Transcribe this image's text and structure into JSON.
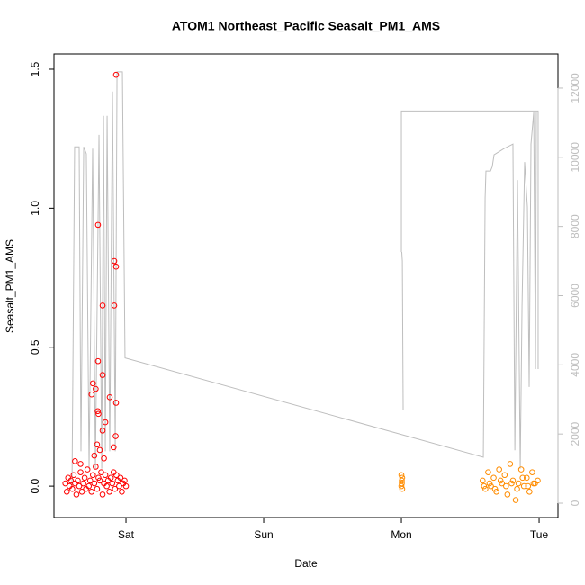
{
  "chart_data": {
    "type": "scatter",
    "title": "ATOM1 Northeast_Pacific Seasalt_PM1_AMS",
    "x_label": "Date",
    "y_label": "Seasalt_PM1_AMS",
    "xlim": [
      -0.523,
      3.137
    ],
    "xticks": [
      {
        "value": 0,
        "label": "Sat"
      },
      {
        "value": 1,
        "label": "Sun"
      },
      {
        "value": 2,
        "label": "Mon"
      },
      {
        "value": 3,
        "label": "Tue"
      }
    ],
    "ylim": [
      -0.113,
      1.555
    ],
    "yticks": [
      {
        "value": 0,
        "label": "0.0"
      },
      {
        "value": 0.5,
        "label": "0.5"
      },
      {
        "value": 1,
        "label": "1.0"
      },
      {
        "value": 1.5,
        "label": "1.5"
      }
    ],
    "y2lim": [
      -416,
      12988
    ],
    "y2ticks": [
      0,
      2000,
      4000,
      6000,
      8000,
      10000,
      12000
    ],
    "y2color": "#bebebe",
    "series": [
      {
        "color": "#bebebe",
        "axis": "y2",
        "x": [
          -0.392,
          -0.373,
          -0.34,
          -0.327,
          -0.307,
          -0.288,
          -0.268,
          -0.242,
          -0.222,
          -0.196,
          -0.176,
          -0.163,
          -0.15,
          -0.137,
          -0.118,
          -0.098,
          -0.078,
          -0.065,
          -0.026,
          -0.007,
          2.595,
          2.608,
          2.614,
          2.647,
          2.66,
          2.673,
          2.745,
          2.81,
          2.824,
          2.843,
          2.863,
          2.876,
          2.895,
          2.915,
          2.928,
          2.941,
          2.961,
          2.974,
          2.98,
          null,
          2.0,
          2.0,
          2.993,
          2.993,
          null,
          2.003,
          2.007,
          2.013
        ],
        "values": [
          500,
          10300,
          10300,
          1500,
          10300,
          10100,
          1000,
          10250,
          1000,
          10650,
          1000,
          11200,
          1500,
          11200,
          1500,
          11900,
          1500,
          12470,
          12470,
          4200,
          1330,
          8820,
          9600,
          9600,
          9730,
          10070,
          10250,
          10380,
          1530,
          9340,
          1000,
          5700,
          9860,
          8560,
          3360,
          10380,
          11300,
          3880,
          11320,
          null,
          7260,
          11340,
          11340,
          3880,
          null,
          7260,
          7000,
          2700
        ]
      },
      {
        "color": "#ff0000",
        "x": [
          -0.44,
          -0.43,
          -0.42,
          -0.41,
          -0.4,
          -0.39,
          -0.38,
          -0.37,
          -0.36,
          -0.35,
          -0.34,
          -0.33,
          -0.32,
          -0.31,
          -0.3,
          -0.29,
          -0.28,
          -0.27,
          -0.26,
          -0.25,
          -0.24,
          -0.23,
          -0.22,
          -0.21,
          -0.2,
          -0.19,
          -0.18,
          -0.17,
          -0.16,
          -0.15,
          -0.14,
          -0.13,
          -0.12,
          -0.11,
          -0.1,
          -0.09,
          -0.08,
          -0.07,
          -0.06,
          -0.05,
          -0.04,
          -0.03,
          -0.02,
          -0.01,
          0.0,
          -0.072,
          -0.203,
          -0.085,
          -0.072,
          -0.17,
          -0.085,
          -0.203,
          -0.17,
          -0.24,
          -0.22,
          -0.25,
          -0.118,
          -0.072,
          -0.205,
          -0.2,
          -0.15,
          -0.17,
          -0.075,
          -0.21,
          -0.19,
          -0.09,
          -0.23,
          -0.16,
          -0.37,
          -0.33
        ],
        "values": [
          0.01,
          -0.02,
          0.03,
          0.0,
          0.02,
          -0.01,
          0.04,
          0.01,
          -0.03,
          0.02,
          0.0,
          0.05,
          -0.02,
          0.01,
          0.03,
          -0.01,
          0.06,
          0.0,
          0.02,
          -0.02,
          0.04,
          0.01,
          0.07,
          -0.01,
          0.03,
          0.02,
          0.05,
          -0.03,
          0.01,
          0.04,
          0.0,
          0.02,
          -0.02,
          0.03,
          0.01,
          0.05,
          -0.01,
          0.04,
          0.02,
          0.0,
          0.03,
          -0.02,
          0.01,
          0.02,
          0.0,
          1.48,
          0.94,
          0.81,
          0.79,
          0.65,
          0.65,
          0.45,
          0.4,
          0.37,
          0.35,
          0.33,
          0.32,
          0.3,
          0.27,
          0.26,
          0.23,
          0.2,
          0.18,
          0.15,
          0.13,
          0.14,
          0.11,
          0.1,
          0.09,
          0.08
        ]
      },
      {
        "color": "#ff8c00",
        "x": [
          2.0,
          2.003,
          2.006,
          2.0,
          2.003,
          2.006,
          2.59,
          2.61,
          2.63,
          2.65,
          2.67,
          2.69,
          2.71,
          2.73,
          2.75,
          2.77,
          2.79,
          2.81,
          2.83,
          2.85,
          2.87,
          2.89,
          2.91,
          2.93,
          2.95,
          2.97,
          2.99,
          2.6,
          2.64,
          2.68,
          2.72,
          2.76,
          2.8,
          2.84,
          2.88,
          2.92,
          2.96
        ],
        "values": [
          0.0,
          0.02,
          -0.01,
          0.04,
          0.01,
          0.03,
          0.02,
          -0.01,
          0.05,
          0.0,
          0.03,
          -0.02,
          0.06,
          0.01,
          0.04,
          -0.03,
          0.08,
          0.02,
          -0.05,
          0.01,
          0.06,
          0.0,
          0.03,
          -0.02,
          0.05,
          0.01,
          0.02,
          0.0,
          0.01,
          -0.01,
          0.02,
          0.0,
          0.01,
          -0.01,
          0.03,
          0.0,
          0.01
        ]
      }
    ]
  }
}
